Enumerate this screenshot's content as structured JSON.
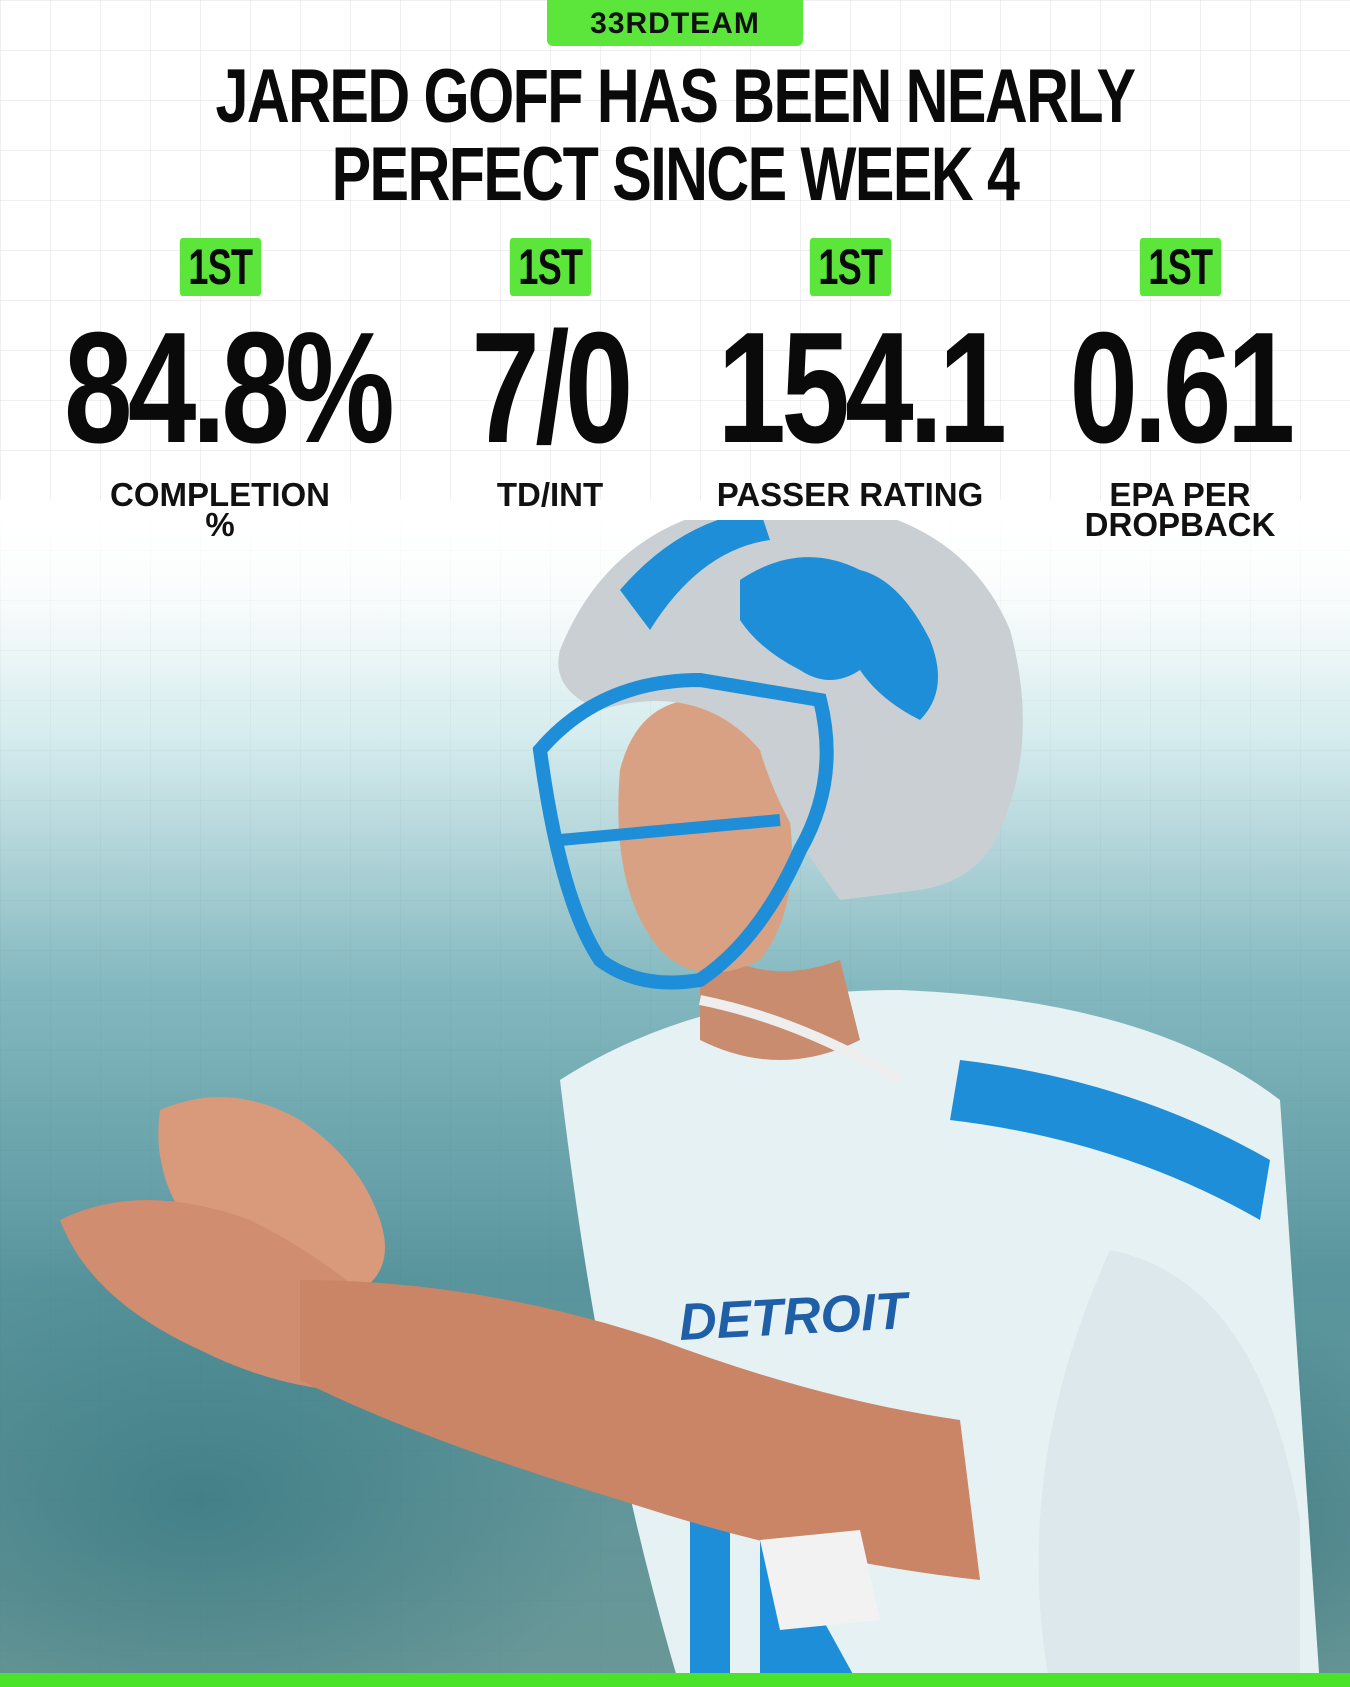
{
  "brand": "33RDTEAM",
  "headline": {
    "line1": "JARED GOFF HAS BEEN NEARLY",
    "line2": "PERFECT SINCE WEEK 4"
  },
  "stats": [
    {
      "rank": "1ST",
      "value": "84.8%",
      "label_line1": "COMPLETION",
      "label_line2": "%"
    },
    {
      "rank": "1ST",
      "value": "7/0",
      "label_line1": "TD/INT",
      "label_line2": ""
    },
    {
      "rank": "1ST",
      "value": "154.1",
      "label_line1": "PASSER RATING",
      "label_line2": ""
    },
    {
      "rank": "1ST",
      "value": "0.61",
      "label_line1": "EPA PER",
      "label_line2": "DROPBACK"
    }
  ],
  "photo": {
    "helmet_color": "#c9cfd3",
    "accent_blue": "#1e8ed8",
    "jersey_color": "#e6f1f4",
    "jersey_text": "DETROIT"
  },
  "colors": {
    "accent_green": "#5ce53a",
    "text": "#0a0a0a"
  }
}
